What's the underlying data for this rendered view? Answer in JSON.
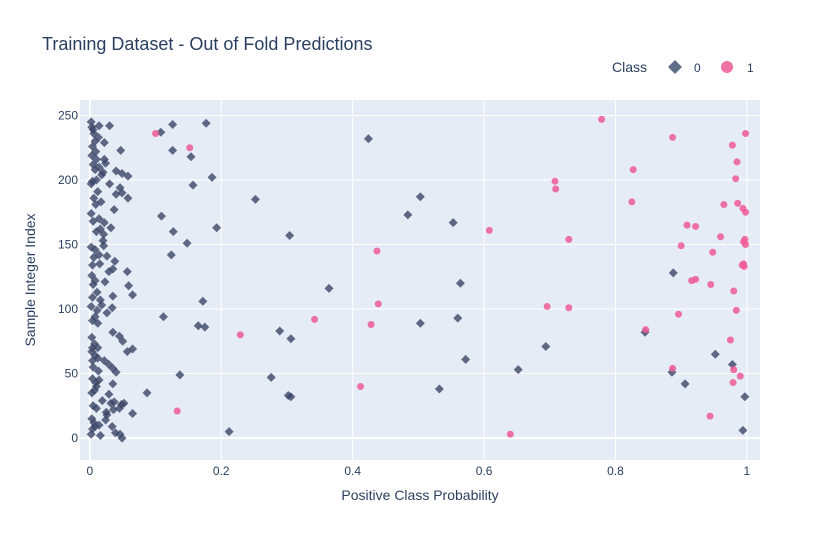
{
  "chart_data": {
    "type": "scatter",
    "title": "Training Dataset - Out of Fold Predictions",
    "xlabel": "Positive Class Probability",
    "ylabel": "Sample Integer Index",
    "xlim": [
      -0.015,
      1.02
    ],
    "ylim": [
      -17,
      262
    ],
    "xticks": [
      0,
      0.2,
      0.4,
      0.6,
      0.8,
      1
    ],
    "xtick_labels": [
      "0",
      "0.2",
      "0.4",
      "0.6",
      "0.8",
      "1"
    ],
    "yticks": [
      0,
      50,
      100,
      150,
      200,
      250
    ],
    "ytick_labels": [
      "0",
      "50",
      "100",
      "150",
      "200",
      "250"
    ],
    "grid": true,
    "plot_background": "#e5ecf6",
    "legend": {
      "title": "Class",
      "position": "top-right",
      "entries": [
        {
          "label": "0",
          "marker": "diamond",
          "color": "#2a3f5f"
        },
        {
          "label": "1",
          "marker": "circle",
          "color": "#ef5a95"
        }
      ]
    },
    "series": [
      {
        "name": "0",
        "marker": "diamond",
        "color": "#3b4668",
        "points": [
          [
            0.002,
            245
          ],
          [
            0.003,
            241
          ],
          [
            0.005,
            239
          ],
          [
            0.014,
            242
          ],
          [
            0.03,
            242
          ],
          [
            0.108,
            237
          ],
          [
            0.126,
            243
          ],
          [
            0.177,
            244
          ],
          [
            0.424,
            232
          ],
          [
            0.006,
            236
          ],
          [
            0.008,
            230
          ],
          [
            0.013,
            233
          ],
          [
            0.022,
            229
          ],
          [
            0.004,
            226
          ],
          [
            0.009,
            222
          ],
          [
            0.047,
            223
          ],
          [
            0.126,
            223
          ],
          [
            0.154,
            218
          ],
          [
            0.003,
            219
          ],
          [
            0.01,
            216
          ],
          [
            0.022,
            216
          ],
          [
            0.024,
            213
          ],
          [
            0.005,
            212
          ],
          [
            0.008,
            208
          ],
          [
            0.014,
            210
          ],
          [
            0.02,
            206
          ],
          [
            0.018,
            204
          ],
          [
            0.04,
            207
          ],
          [
            0.049,
            205
          ],
          [
            0.058,
            203
          ],
          [
            0.186,
            202
          ],
          [
            0.004,
            199
          ],
          [
            0.002,
            197
          ],
          [
            0.01,
            200
          ],
          [
            0.03,
            197
          ],
          [
            0.046,
            194
          ],
          [
            0.049,
            190
          ],
          [
            0.157,
            196
          ],
          [
            0.04,
            189
          ],
          [
            0.058,
            186
          ],
          [
            0.012,
            191
          ],
          [
            0.006,
            186
          ],
          [
            0.017,
            183
          ],
          [
            0.009,
            181
          ],
          [
            0.037,
            177
          ],
          [
            0.252,
            185
          ],
          [
            0.503,
            187
          ],
          [
            0.484,
            173
          ],
          [
            0.002,
            174
          ],
          [
            0.014,
            170
          ],
          [
            0.022,
            167
          ],
          [
            0.005,
            168
          ],
          [
            0.109,
            172
          ],
          [
            0.553,
            167
          ],
          [
            0.01,
            160
          ],
          [
            0.016,
            162
          ],
          [
            0.021,
            158
          ],
          [
            0.032,
            163
          ],
          [
            0.127,
            160
          ],
          [
            0.193,
            163
          ],
          [
            0.304,
            157
          ],
          [
            0.002,
            148
          ],
          [
            0.008,
            146
          ],
          [
            0.02,
            153
          ],
          [
            0.021,
            149
          ],
          [
            0.148,
            151
          ],
          [
            0.006,
            140
          ],
          [
            0.014,
            142
          ],
          [
            0.026,
            141
          ],
          [
            0.038,
            137
          ],
          [
            0.035,
            131
          ],
          [
            0.004,
            134
          ],
          [
            0.015,
            135
          ],
          [
            0.029,
            129
          ],
          [
            0.124,
            142
          ],
          [
            0.057,
            129
          ],
          [
            0.003,
            126
          ],
          [
            0.008,
            122
          ],
          [
            0.005,
            119
          ],
          [
            0.023,
            121
          ],
          [
            0.059,
            118
          ],
          [
            0.065,
            111
          ],
          [
            0.364,
            116
          ],
          [
            0.564,
            120
          ],
          [
            0.888,
            128
          ],
          [
            0.011,
            113
          ],
          [
            0.004,
            109
          ],
          [
            0.016,
            107
          ],
          [
            0.035,
            110
          ],
          [
            0.172,
            106
          ],
          [
            0.002,
            102
          ],
          [
            0.018,
            103
          ],
          [
            0.011,
            99
          ],
          [
            0.026,
            97
          ],
          [
            0.008,
            94
          ],
          [
            0.004,
            91
          ],
          [
            0.112,
            94
          ],
          [
            0.012,
            89
          ],
          [
            0.034,
            101
          ],
          [
            0.165,
            87
          ],
          [
            0.175,
            86
          ],
          [
            0.289,
            83
          ],
          [
            0.035,
            82
          ],
          [
            0.045,
            79
          ],
          [
            0.05,
            75
          ],
          [
            0.003,
            78
          ],
          [
            0.007,
            73
          ],
          [
            0.004,
            70
          ],
          [
            0.012,
            70
          ],
          [
            0.003,
            67
          ],
          [
            0.008,
            64
          ],
          [
            0.065,
            69
          ],
          [
            0.057,
            67
          ],
          [
            0.306,
            77
          ],
          [
            0.503,
            89
          ],
          [
            0.56,
            93
          ],
          [
            0.845,
            82
          ],
          [
            0.004,
            60
          ],
          [
            0.012,
            62
          ],
          [
            0.022,
            60
          ],
          [
            0.029,
            57
          ],
          [
            0.035,
            54
          ],
          [
            0.005,
            55
          ],
          [
            0.013,
            52
          ],
          [
            0.04,
            51
          ],
          [
            0.137,
            49
          ],
          [
            0.276,
            47
          ],
          [
            0.572,
            61
          ],
          [
            0.652,
            53
          ],
          [
            0.694,
            71
          ],
          [
            0.952,
            65
          ],
          [
            0.978,
            57
          ],
          [
            0.886,
            51
          ],
          [
            0.906,
            42
          ],
          [
            0.004,
            46
          ],
          [
            0.009,
            43
          ],
          [
            0.014,
            45
          ],
          [
            0.01,
            40
          ],
          [
            0.035,
            42
          ],
          [
            0.003,
            35
          ],
          [
            0.007,
            37
          ],
          [
            0.019,
            29
          ],
          [
            0.029,
            34
          ],
          [
            0.037,
            28
          ],
          [
            0.087,
            35
          ],
          [
            0.302,
            33
          ],
          [
            0.306,
            32
          ],
          [
            0.532,
            38
          ],
          [
            0.005,
            25
          ],
          [
            0.01,
            23
          ],
          [
            0.032,
            27
          ],
          [
            0.048,
            26
          ],
          [
            0.052,
            27
          ],
          [
            0.036,
            22
          ],
          [
            0.045,
            23
          ],
          [
            0.025,
            20
          ],
          [
            0.026,
            18
          ],
          [
            0.065,
            19
          ],
          [
            0.003,
            15
          ],
          [
            0.006,
            12
          ],
          [
            0.008,
            9
          ],
          [
            0.014,
            10
          ],
          [
            0.004,
            7
          ],
          [
            0.002,
            3
          ],
          [
            0.024,
            14
          ],
          [
            0.034,
            9
          ],
          [
            0.039,
            4
          ],
          [
            0.046,
            3
          ],
          [
            0.049,
            0
          ],
          [
            0.016,
            2
          ],
          [
            0.212,
            5
          ],
          [
            0.997,
            32
          ],
          [
            0.994,
            6
          ]
        ]
      },
      {
        "name": "1",
        "marker": "circle",
        "color": "#ef5a95",
        "points": [
          [
            0.1,
            236
          ],
          [
            0.779,
            247
          ],
          [
            0.887,
            233
          ],
          [
            0.998,
            236
          ],
          [
            0.152,
            225
          ],
          [
            0.978,
            227
          ],
          [
            0.985,
            214
          ],
          [
            0.827,
            208
          ],
          [
            0.708,
            199
          ],
          [
            0.709,
            193
          ],
          [
            0.983,
            201
          ],
          [
            0.825,
            183
          ],
          [
            0.986,
            182
          ],
          [
            0.994,
            178
          ],
          [
            0.998,
            175
          ],
          [
            0.965,
            181
          ],
          [
            0.909,
            165
          ],
          [
            0.922,
            164
          ],
          [
            0.608,
            161
          ],
          [
            0.729,
            154
          ],
          [
            0.96,
            156
          ],
          [
            0.997,
            154
          ],
          [
            0.995,
            152
          ],
          [
            0.998,
            150
          ],
          [
            0.9,
            149
          ],
          [
            0.437,
            145
          ],
          [
            0.948,
            144
          ],
          [
            0.995,
            135
          ],
          [
            0.993,
            134
          ],
          [
            0.996,
            133
          ],
          [
            0.916,
            122
          ],
          [
            0.922,
            123
          ],
          [
            0.945,
            119
          ],
          [
            0.98,
            114
          ],
          [
            0.439,
            104
          ],
          [
            0.696,
            102
          ],
          [
            0.729,
            101
          ],
          [
            0.984,
            99
          ],
          [
            0.896,
            96
          ],
          [
            0.342,
            92
          ],
          [
            0.428,
            88
          ],
          [
            0.846,
            84
          ],
          [
            0.229,
            80
          ],
          [
            0.975,
            76
          ],
          [
            0.887,
            54
          ],
          [
            0.98,
            53
          ],
          [
            0.99,
            48
          ],
          [
            0.979,
            43
          ],
          [
            0.412,
            40
          ],
          [
            0.133,
            21
          ],
          [
            0.944,
            17
          ],
          [
            0.64,
            3
          ]
        ]
      }
    ]
  }
}
